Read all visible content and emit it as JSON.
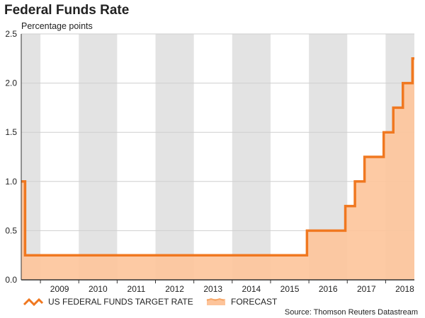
{
  "chart_data": {
    "type": "area",
    "title": "Federal Funds Rate",
    "subtitle": "Percentage points",
    "source": "Source: Thomson Reuters Datastream",
    "xlabel": "",
    "ylabel": "",
    "x_range": [
      2008.5,
      2018.75
    ],
    "ylim": [
      0,
      2.5
    ],
    "y_ticks": [
      {
        "value": 0.0,
        "label": "0.0"
      },
      {
        "value": 0.5,
        "label": "0.5"
      },
      {
        "value": 1.0,
        "label": "1.0"
      },
      {
        "value": 1.5,
        "label": "1.5"
      },
      {
        "value": 2.0,
        "label": "2.0"
      },
      {
        "value": 2.5,
        "label": "2.5"
      }
    ],
    "x_ticks": [
      {
        "value": 2009,
        "label": "2009"
      },
      {
        "value": 2010,
        "label": "2010"
      },
      {
        "value": 2011,
        "label": "2011"
      },
      {
        "value": 2012,
        "label": "2012"
      },
      {
        "value": 2013,
        "label": "2013"
      },
      {
        "value": 2014,
        "label": "2014"
      },
      {
        "value": 2015,
        "label": "2015"
      },
      {
        "value": 2016,
        "label": "2016"
      },
      {
        "value": 2017,
        "label": "2017"
      },
      {
        "value": 2018,
        "label": "2018"
      }
    ],
    "grid": true,
    "shaded_years": [
      2008,
      2010,
      2012,
      2014,
      2016,
      2018
    ],
    "series": [
      {
        "name": "US FEDERAL FUNDS TARGET RATE",
        "color": "#f07820",
        "fill": "#fdc49a",
        "points": [
          {
            "x": 2008.5,
            "y": 1.0
          },
          {
            "x": 2008.6,
            "y": 0.25
          },
          {
            "x": 2015.95,
            "y": 0.5
          },
          {
            "x": 2016.95,
            "y": 0.75
          },
          {
            "x": 2017.2,
            "y": 1.0
          },
          {
            "x": 2017.45,
            "y": 1.25
          },
          {
            "x": 2017.95,
            "y": 1.5
          },
          {
            "x": 2018.2,
            "y": 1.75
          },
          {
            "x": 2018.45,
            "y": 2.0
          },
          {
            "x": 2018.7,
            "y": 2.25
          },
          {
            "x": 2018.75,
            "y": 2.25
          }
        ]
      },
      {
        "name": "FORECAST",
        "color": "#f5a86a",
        "fill": "#fdc49a",
        "points": []
      }
    ],
    "background": {
      "band": "#e3e3e3",
      "plot": "#ffffff",
      "grid": "#cfcfcf",
      "axis": "#333333"
    }
  }
}
